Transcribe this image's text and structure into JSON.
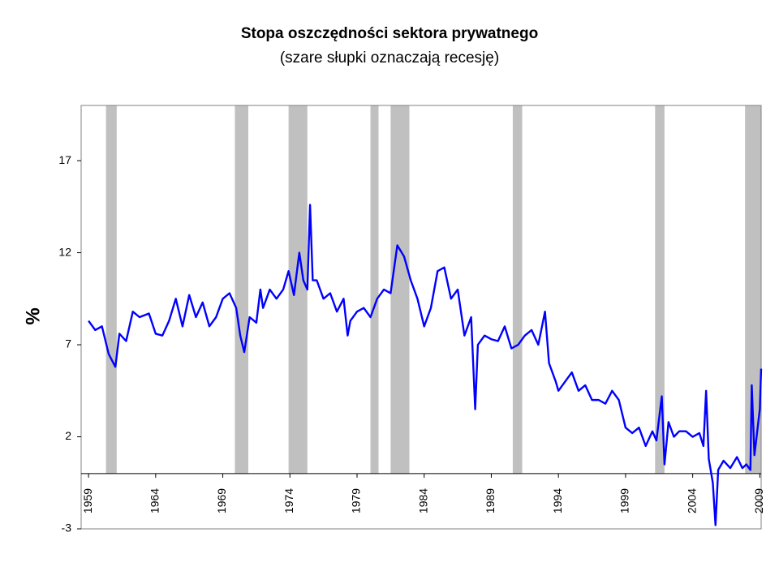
{
  "chart_data": {
    "type": "line",
    "title": "Stopa oszczędności sektora prywatnego",
    "subtitle": "(szare słupki oznaczają recesję)",
    "y_label": "%",
    "xlim": [
      1958.45,
      2009.1
    ],
    "ylim": [
      -3,
      20
    ],
    "xticks": [
      1959,
      1964,
      1969,
      1974,
      1979,
      1984,
      1989,
      1994,
      1999,
      2004,
      2009
    ],
    "yticks": [
      -3,
      2,
      7,
      12,
      17
    ],
    "recession_color": "#c0c0c0",
    "recessions": [
      [
        1960.3,
        1961.1
      ],
      [
        1969.9,
        1970.9
      ],
      [
        1973.9,
        1975.3
      ],
      [
        1980.0,
        1980.6
      ],
      [
        1981.5,
        1982.9
      ],
      [
        1990.6,
        1991.3
      ],
      [
        2001.2,
        2001.9
      ],
      [
        2007.9,
        2009.4
      ]
    ],
    "series": [
      {
        "color": "#0000ff",
        "x": [
          1959,
          1959.5,
          1960,
          1960.5,
          1961,
          1961.3,
          1961.8,
          1962.3,
          1962.8,
          1963.5,
          1964,
          1964.5,
          1965,
          1965.5,
          1966,
          1966.5,
          1967,
          1967.5,
          1968,
          1968.5,
          1969,
          1969.5,
          1970,
          1970.3,
          1970.6,
          1971,
          1971.5,
          1971.8,
          1972,
          1972.5,
          1973,
          1973.5,
          1973.9,
          1974.3,
          1974.7,
          1975,
          1975.3,
          1975.5,
          1975.7,
          1976,
          1976.5,
          1977,
          1977.5,
          1978,
          1978.3,
          1978.5,
          1979,
          1979.5,
          1980,
          1980.5,
          1981,
          1981.5,
          1982,
          1982.5,
          1983,
          1983.5,
          1984,
          1984.5,
          1985,
          1985.5,
          1986,
          1986.5,
          1987,
          1987.5,
          1987.8,
          1988,
          1988.5,
          1989,
          1989.5,
          1990,
          1990.5,
          1991,
          1991.5,
          1992,
          1992.5,
          1993,
          1993.3,
          1993.8,
          1994,
          1994.5,
          1995,
          1995.5,
          1996,
          1996.5,
          1997,
          1997.5,
          1998,
          1998.5,
          1999,
          1999.5,
          2000,
          2000.5,
          2001,
          2001.3,
          2001.7,
          2001.9,
          2002.2,
          2002.6,
          2003,
          2003.5,
          2004,
          2004.5,
          2004.8,
          2005,
          2005.2,
          2005.5,
          2005.7,
          2005.9,
          2006.3,
          2006.8,
          2007.3,
          2007.7,
          2008,
          2008.3,
          2008.4,
          2008.6,
          2009,
          2009.1
        ],
        "values": [
          8.3,
          7.8,
          8.0,
          6.5,
          5.8,
          7.6,
          7.2,
          8.8,
          8.5,
          8.7,
          7.6,
          7.5,
          8.3,
          9.5,
          8.0,
          9.7,
          8.5,
          9.3,
          8.0,
          8.5,
          9.5,
          9.8,
          9.0,
          7.5,
          6.6,
          8.5,
          8.2,
          10.0,
          9.0,
          10.0,
          9.5,
          10.0,
          11.0,
          9.7,
          12.0,
          10.5,
          10.0,
          14.6,
          10.5,
          10.5,
          9.5,
          9.8,
          8.8,
          9.5,
          7.5,
          8.3,
          8.8,
          9.0,
          8.5,
          9.5,
          10.0,
          9.8,
          12.4,
          11.8,
          10.5,
          9.5,
          8.0,
          9.0,
          11.0,
          11.2,
          9.5,
          10.0,
          7.5,
          8.5,
          3.5,
          7.0,
          7.5,
          7.3,
          7.2,
          8.0,
          6.8,
          7.0,
          7.5,
          7.8,
          7.0,
          8.8,
          6.0,
          5.0,
          4.5,
          5.0,
          5.5,
          4.5,
          4.8,
          4.0,
          4.0,
          3.8,
          4.5,
          4.0,
          2.5,
          2.2,
          2.5,
          1.5,
          2.3,
          1.8,
          4.2,
          0.5,
          2.8,
          2.0,
          2.3,
          2.3,
          2.0,
          2.2,
          1.5,
          4.5,
          0.8,
          -0.5,
          -2.8,
          0.2,
          0.7,
          0.3,
          0.9,
          0.3,
          0.5,
          0.2,
          4.8,
          1.0,
          3.5,
          5.7
        ]
      }
    ]
  }
}
